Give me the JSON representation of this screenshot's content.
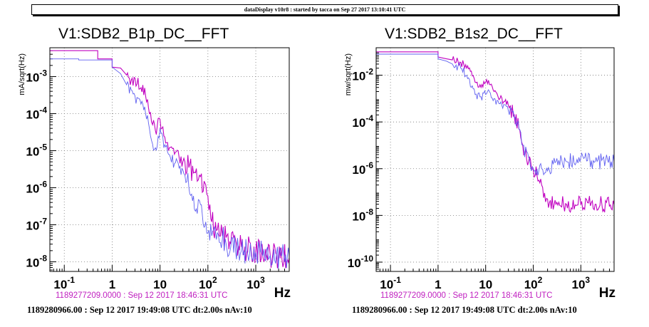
{
  "banner": "dataDisplay v10r8 : started by tacca on Sep 27 2017 13:10:41 UTC",
  "colors": {
    "ref": "#c000c0",
    "live": "#6060f0"
  },
  "chart_data": [
    {
      "type": "line",
      "title": "V1:SDB2_B1p_DC__FFT",
      "ylabel": "mA/sqrt(Hz)",
      "xlabel": "Hz",
      "xscale": "log",
      "yscale": "log",
      "xlim": [
        0.05,
        5000
      ],
      "ylim": [
        5.5e-09,
        0.006
      ],
      "x_ticks": [
        "10^-1",
        "1",
        "10",
        "10^2",
        "10^3"
      ],
      "y_ticks": [
        "10^-8",
        "10^-7",
        "10^-6",
        "10^-5",
        "10^-4",
        "10^-3"
      ],
      "grid": true,
      "reference_label": "1189277209.0000 : Sep 12 2017 18:46:31 UTC",
      "live_label": "1189280966.00 : Sep 12 2017 19:49:08 UTC dt:2.00s nAv:10",
      "series": [
        {
          "x": [
            0.05,
            0.5,
            0.5,
            1.0,
            1.0,
            1.5,
            2.0,
            2.5,
            3.0,
            4.0,
            5.0,
            6.0,
            7.0,
            8.0,
            10,
            12,
            15,
            20,
            30,
            40,
            50,
            60,
            70,
            80,
            90,
            100,
            110,
            120,
            150,
            200,
            300,
            500,
            1000,
            2000,
            5000
          ],
          "y": [
            0.005,
            0.005,
            0.003,
            0.003,
            0.0018,
            0.0017,
            0.0011,
            0.0008,
            0.0009,
            0.0005,
            0.0003,
            0.0001,
            5e-05,
            3.5e-05,
            7e-05,
            2.5e-05,
            1e-05,
            8e-06,
            5e-06,
            3.5e-06,
            2.5e-06,
            1.5e-06,
            2e-06,
            8e-07,
            1.2e-06,
            6e-07,
            3.5e-07,
            1.2e-07,
            7e-08,
            5e-08,
            3e-08,
            2.5e-08,
            2e-08,
            1.5e-08,
            1.3e-08
          ]
        },
        {
          "x": [
            0.05,
            0.2,
            0.2,
            0.5,
            0.5,
            1.0,
            1.0,
            1.5,
            2.0,
            3.0,
            4.0,
            5.0,
            6.0,
            7.0,
            8.0,
            10,
            12,
            15,
            20,
            30,
            40,
            50,
            60,
            70,
            80,
            90,
            100,
            120,
            150,
            200,
            300,
            500,
            1000,
            2000,
            5000
          ],
          "y": [
            0.003,
            0.003,
            0.0028,
            0.0028,
            0.0028,
            0.0028,
            0.0018,
            0.0012,
            0.0006,
            0.0003,
            0.00018,
            0.0001,
            4e-05,
            1.5e-05,
            1.2e-05,
            4e-05,
            1.2e-05,
            8e-06,
            4.5e-06,
            3e-06,
            1e-06,
            6e-07,
            2e-07,
            3.5e-07,
            1e-07,
            1.2e-07,
            6e-08,
            5e-08,
            4e-08,
            4e-08,
            2.5e-08,
            2e-08,
            1.8e-08,
            1.5e-08,
            1.3e-08
          ]
        }
      ]
    },
    {
      "type": "line",
      "title": "V1:SDB2_B1s2_DC__FFT",
      "ylabel": "mw/sqrt(Hz)",
      "xlabel": "Hz",
      "xscale": "log",
      "yscale": "log",
      "xlim": [
        0.05,
        5000
      ],
      "ylim": [
        4e-11,
        0.15
      ],
      "x_ticks": [
        "10^-1",
        "1",
        "10",
        "10^2",
        "10^3"
      ],
      "y_ticks": [
        "10^-10",
        "10^-8",
        "10^-6",
        "10^-4",
        "10^-2"
      ],
      "grid": true,
      "reference_label": "1189277209.0000 : Sep 12 2017 18:46:31 UTC",
      "live_label": "1189280966.00 : Sep 12 2017 19:49:08 UTC dt:2.00s nAv:10",
      "series": [
        {
          "x": [
            0.05,
            1.0,
            1.0,
            1.5,
            2.0,
            3.0,
            4.0,
            5.0,
            6.0,
            8.0,
            10,
            12,
            15,
            20,
            30,
            40,
            50,
            60,
            80,
            100,
            120,
            150,
            200,
            300,
            500,
            1000,
            2000,
            5000
          ],
          "y": [
            0.1,
            0.1,
            0.06,
            0.05,
            0.045,
            0.035,
            0.02,
            0.015,
            0.005,
            0.003,
            0.005,
            0.004,
            0.002,
            0.001,
            0.0005,
            0.0002,
            5e-05,
            1e-05,
            2e-06,
            1e-06,
            5e-07,
            2e-07,
            5e-08,
            3e-08,
            3e-08,
            3e-08,
            3e-08,
            3e-08
          ]
        },
        {
          "x": [
            0.05,
            1.0,
            1.0,
            1.5,
            2.0,
            3.0,
            4.0,
            5.0,
            6.0,
            8.0,
            10,
            12,
            15,
            20,
            30,
            40,
            50,
            60,
            80,
            100,
            120,
            150,
            200,
            300,
            500,
            1000,
            2000,
            5000
          ],
          "y": [
            0.08,
            0.08,
            0.05,
            0.04,
            0.03,
            0.02,
            0.01,
            0.003,
            0.0015,
            0.0012,
            0.0015,
            0.002,
            0.001,
            0.0006,
            0.0003,
            0.00015,
            5e-05,
            1e-05,
            3e-06,
            1e-06,
            1e-06,
            1e-06,
            8e-07,
            2e-06,
            2e-06,
            3e-06,
            2e-06,
            2e-06
          ]
        }
      ]
    }
  ]
}
